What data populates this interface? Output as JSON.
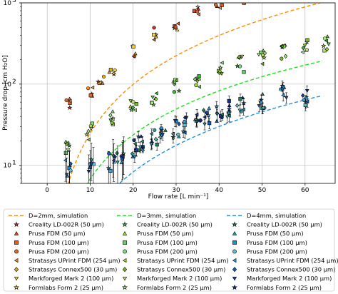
{
  "chart_data": {
    "type": "scatter",
    "title": "",
    "xlabel": "Flow rate [L min⁻¹]",
    "ylabel": "Pressure drop [cm H₂O]",
    "xlim": [
      -6,
      67
    ],
    "ylim": [
      6,
      1000
    ],
    "yscale": "log",
    "x_ticks": [
      0,
      10,
      20,
      30,
      40,
      50,
      60
    ],
    "y_ticks": [
      {
        "value": 10,
        "base": "10",
        "exp": "1"
      },
      {
        "value": 100,
        "base": "10",
        "exp": "2"
      },
      {
        "value": 1000,
        "base": "10",
        "exp": "3"
      }
    ],
    "grid": true,
    "legend_position": "below",
    "legend_columns": 3,
    "simulations": [
      {
        "name": "D=2mm, simulation",
        "color": "#ff8c00",
        "a": 0.248,
        "b": 2.0,
        "x_range": [
          3,
          64
        ]
      },
      {
        "name": "D=3mm, simulation",
        "color": "#22dd22",
        "a": 0.108,
        "b": 1.8,
        "x_range": [
          9,
          64
        ]
      },
      {
        "name": "D=4mm, simulation",
        "color": "#1f8fdd",
        "a": 0.0315,
        "b": 1.86,
        "x_range": [
          15,
          64
        ]
      }
    ],
    "groups": [
      {
        "diameter": "2mm",
        "x": [
          5,
          10,
          12.5,
          15,
          20,
          25,
          30,
          35,
          40,
          45
        ],
        "y": [
          55,
          80,
          108,
          150,
          255,
          420,
          560,
          780,
          900,
          1000
        ],
        "scatter": 0.16
      },
      {
        "diameter": "3mm",
        "x": [
          5,
          10,
          15,
          20,
          25,
          30,
          35,
          40,
          45,
          50,
          55,
          60,
          65
        ],
        "y": [
          16,
          26,
          38,
          52,
          70,
          90,
          115,
          150,
          175,
          215,
          245,
          300,
          320
        ],
        "scatter": 0.2
      },
      {
        "diameter": "4mm",
        "x": [
          5,
          10,
          15,
          17,
          20,
          22,
          25,
          27,
          30,
          32,
          35,
          37,
          40,
          42,
          45,
          50,
          55,
          60
        ],
        "y": [
          9,
          9.5,
          11,
          13,
          16,
          19,
          22,
          25,
          28,
          32,
          36,
          40,
          45,
          50,
          58,
          65,
          75,
          70
        ],
        "scatter": 0.22
      }
    ],
    "series": [
      {
        "name": "Creality LD-002R (50 μm)",
        "marker": "star",
        "color": "#d03020"
      },
      {
        "name": "Prusa FDM (50 μm)",
        "marker": "triangle",
        "color": "#d84a2a"
      },
      {
        "name": "Prusa FDM (100 μm)",
        "marker": "square",
        "color": "#e85a20"
      },
      {
        "name": "Prusa FDM (200 μm)",
        "marker": "circle",
        "color": "#e86820"
      },
      {
        "name": "Stratasys UPrint FDM (254 μm)",
        "marker": "triangle-left",
        "color": "#f09030"
      },
      {
        "name": "Stratasys Connex500 (30 μm)",
        "marker": "diamond",
        "color": "#d8b020"
      },
      {
        "name": "Markforged Mark 2 (100 μm)",
        "marker": "tri-down",
        "color": "#f0d030"
      },
      {
        "name": "Formlabs Form 2 (25 μm)",
        "marker": "star",
        "color": "#f0e050"
      }
    ],
    "legend_layout": {
      "col2_colors": [
        "#30c030",
        "#90e030",
        "#60d060",
        "#80e080",
        "#b0e030",
        "#70c020",
        "#c0e070",
        "#a0f080"
      ],
      "col3_colors": [
        "#208060",
        "#20a0a0",
        "#2090c0",
        "#60c0d0",
        "#30a0e0",
        "#1060c0",
        "#2040a0",
        "#103090"
      ]
    }
  }
}
